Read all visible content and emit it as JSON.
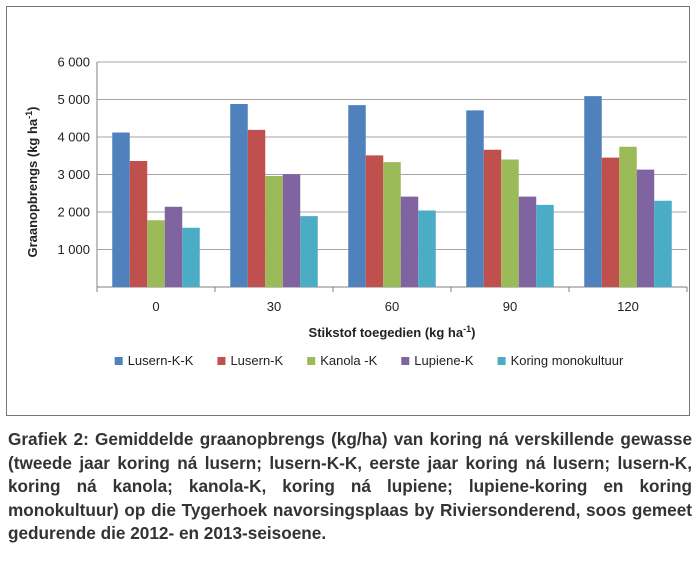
{
  "chart_data": {
    "type": "bar",
    "categories": [
      "0",
      "30",
      "60",
      "90",
      "120"
    ],
    "series": [
      {
        "name": "Lusern-K-K",
        "color": "#4F81BD",
        "values": [
          4120,
          4880,
          4850,
          4710,
          5090
        ]
      },
      {
        "name": "Lusern-K",
        "color": "#C0504D",
        "values": [
          3360,
          4190,
          3510,
          3660,
          3450
        ]
      },
      {
        "name": "Kanola -K",
        "color": "#9BBB59",
        "values": [
          1780,
          2960,
          3330,
          3400,
          3740
        ]
      },
      {
        "name": "Lupiene-K",
        "color": "#8064A2",
        "values": [
          2140,
          3010,
          2410,
          2410,
          3130
        ]
      },
      {
        "name": "Koring monokultuur",
        "color": "#4BACC6",
        "values": [
          1580,
          1890,
          2040,
          2190,
          2300
        ]
      }
    ],
    "xlabel_main": "Stikstof toegedien (kg ha",
    "xlabel_sup": "-1",
    "xlabel_end": ")",
    "ylabel_main": "Graanopbrengs (kg ha",
    "ylabel_sup": "-1",
    "ylabel_end": ")",
    "ylim": [
      0,
      6000
    ],
    "yticks": [
      0,
      1000,
      2000,
      3000,
      4000,
      5000,
      6000
    ],
    "ytick_labels": [
      "",
      "1 000",
      "2 000",
      "3 000",
      "4 000",
      "5 000",
      "6 000"
    ],
    "grid": true,
    "legend_position": "bottom"
  },
  "caption": "Grafiek 2: Gemiddelde graanopbrengs (kg/ha) van koring ná verskillende gewasse (tweede jaar koring ná lusern; lusern-K-K, eerste jaar koring ná lusern; lusern-K, koring ná kanola; kanola-K, koring ná lupiene; lupiene-koring en koring monokultuur) op die Tygerhoek navorsingsplaas by Riviersonderend, soos gemeet gedurende die 2012- en 2013-seisoene."
}
